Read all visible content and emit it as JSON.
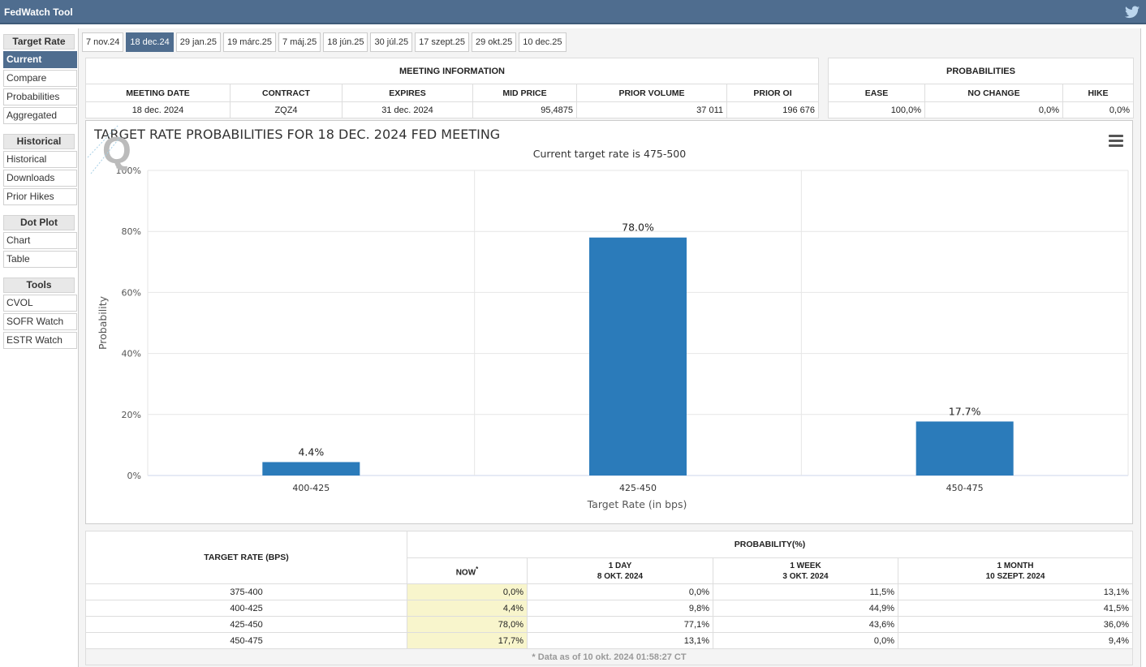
{
  "app": {
    "title": "FedWatch Tool"
  },
  "sidebar": {
    "sections": [
      {
        "header": "Target Rate",
        "items": [
          "Current",
          "Compare",
          "Probabilities",
          "Aggregated"
        ]
      },
      {
        "header": "Historical",
        "items": [
          "Historical",
          "Downloads",
          "Prior Hikes"
        ]
      },
      {
        "header": "Dot Plot",
        "items": [
          "Chart",
          "Table"
        ]
      },
      {
        "header": "Tools",
        "items": [
          "CVOL",
          "SOFR Watch",
          "ESTR Watch"
        ]
      }
    ],
    "active_item": "Current"
  },
  "tabs": {
    "items": [
      "7 nov.24",
      "18 dec.24",
      "29 jan.25",
      "19 márc.25",
      "7 máj.25",
      "18 jún.25",
      "30 júl.25",
      "17 szept.25",
      "29 okt.25",
      "10 dec.25"
    ],
    "active": "18 dec.24"
  },
  "meeting_info": {
    "header": "MEETING INFORMATION",
    "columns": [
      "MEETING DATE",
      "CONTRACT",
      "EXPIRES",
      "MID PRICE",
      "PRIOR VOLUME",
      "PRIOR OI"
    ],
    "values": [
      "18 dec. 2024",
      "ZQZ4",
      "31 dec. 2024",
      "95,4875",
      "37 011",
      "196 676"
    ]
  },
  "probabilities": {
    "header": "PROBABILITIES",
    "columns": [
      "EASE",
      "NO CHANGE",
      "HIKE"
    ],
    "values": [
      "100,0%",
      "0,0%",
      "0,0%"
    ]
  },
  "chart_data": {
    "type": "bar",
    "title": "TARGET RATE PROBABILITIES FOR 18 DEC. 2024 FED MEETING",
    "subtitle": "Current target rate is 475-500",
    "xlabel": "Target Rate (in bps)",
    "ylabel": "Probability",
    "categories": [
      "400-425",
      "425-450",
      "450-475"
    ],
    "values": [
      4.4,
      78.0,
      17.7
    ],
    "data_labels": [
      "4.4%",
      "78.0%",
      "17.7%"
    ],
    "ylim": [
      0,
      100
    ],
    "yticks": [
      "0%",
      "20%",
      "40%",
      "60%",
      "80%",
      "100%"
    ],
    "bar_color": "#2b7bba",
    "grid": true,
    "legend": "none"
  },
  "history_table": {
    "col1_header": "TARGET RATE (BPS)",
    "group_header": "PROBABILITY(%)",
    "columns": [
      {
        "line1": "NOW",
        "line2": ""
      },
      {
        "line1": "1 DAY",
        "line2": "8 OKT. 2024"
      },
      {
        "line1": "1 WEEK",
        "line2": "3 OKT. 2024"
      },
      {
        "line1": "1 MONTH",
        "line2": "10 SZEPT. 2024"
      }
    ],
    "rows": [
      {
        "rate": "375-400",
        "values": [
          "0,0%",
          "0,0%",
          "11,5%",
          "13,1%"
        ]
      },
      {
        "rate": "400-425",
        "values": [
          "4,4%",
          "9,8%",
          "44,9%",
          "41,5%"
        ]
      },
      {
        "rate": "425-450",
        "values": [
          "78,0%",
          "77,1%",
          "43,6%",
          "36,0%"
        ]
      },
      {
        "rate": "450-475",
        "values": [
          "17,7%",
          "13,1%",
          "0,0%",
          "9,4%"
        ]
      }
    ],
    "footnote": "* Data as of 10 okt. 2024 01:58:27 CT"
  }
}
